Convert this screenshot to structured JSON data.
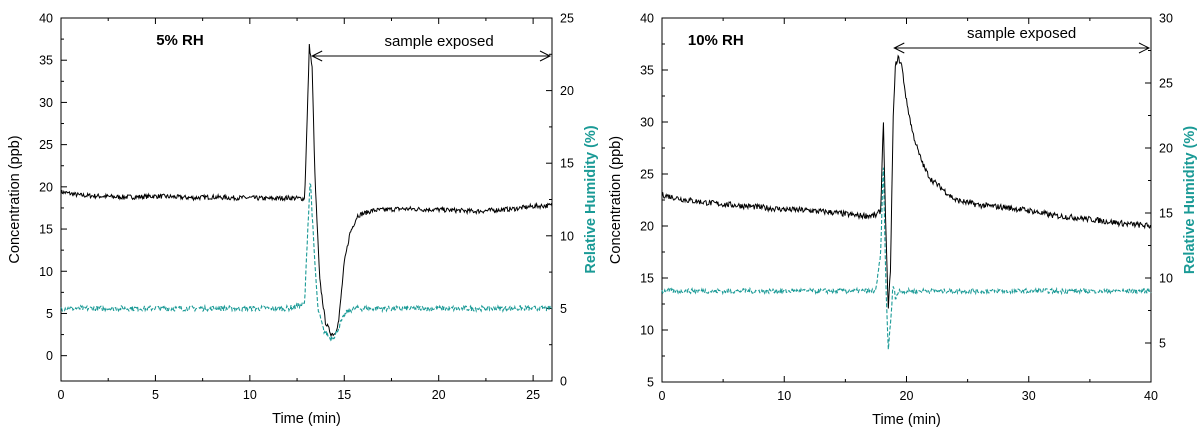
{
  "colors": {
    "concentration": "#000000",
    "humidity": "#1a9a96",
    "axis": "#000000",
    "background": "#ffffff"
  },
  "chart_data": [
    {
      "type": "line",
      "panel_label": "5% RH",
      "annotation": "sample exposed",
      "annotation_range_x": [
        13.3,
        26
      ],
      "xlabel": "Time (min)",
      "ylabel_left": "Concentration (ppb)",
      "ylabel_right": "Relative Humidity (%)",
      "xlim": [
        0,
        26
      ],
      "ylim_left": [
        -3,
        40
      ],
      "ylim_right": [
        0,
        25
      ],
      "xticks": [
        0,
        5,
        10,
        15,
        20,
        25
      ],
      "yticks_left": [
        0,
        5,
        10,
        15,
        20,
        25,
        30,
        35,
        40
      ],
      "yticks_right": [
        0,
        5,
        10,
        15,
        20,
        25
      ],
      "grid": false,
      "series": [
        {
          "axis": "left",
          "style": "solid",
          "x": [
            0,
            1,
            2,
            3,
            4,
            5,
            6,
            7,
            8,
            9,
            10,
            11,
            12,
            12.9,
            13.05,
            13.15,
            13.3,
            13.45,
            13.7,
            14.0,
            14.3,
            14.5,
            14.7,
            15.0,
            15.3,
            15.7,
            16.5,
            18,
            20,
            22,
            24,
            25,
            26
          ],
          "y": [
            19.4,
            19.0,
            18.9,
            18.8,
            18.8,
            18.9,
            18.8,
            18.7,
            18.8,
            18.7,
            18.7,
            18.6,
            18.7,
            18.6,
            29.0,
            36.8,
            34.0,
            21.0,
            9.0,
            4.0,
            2.6,
            2.6,
            4.0,
            11.0,
            14.5,
            16.6,
            17.2,
            17.4,
            17.3,
            17.1,
            17.4,
            17.7,
            17.8
          ]
        },
        {
          "axis": "right",
          "style": "dashed",
          "x": [
            0,
            2,
            4,
            6,
            8,
            10,
            12,
            12.9,
            13.05,
            13.2,
            13.4,
            13.6,
            13.9,
            14.2,
            14.5,
            14.8,
            15.1,
            15.5,
            17,
            19,
            21,
            23,
            25,
            26
          ],
          "y": [
            5.0,
            5.0,
            5.0,
            5.0,
            5.0,
            5.0,
            5.0,
            5.3,
            10.0,
            14.0,
            9.0,
            5.0,
            3.5,
            3.0,
            3.1,
            4.0,
            4.7,
            5.0,
            5.0,
            5.0,
            5.0,
            5.0,
            5.0,
            5.0
          ]
        }
      ]
    },
    {
      "type": "line",
      "panel_label": "10% RH",
      "annotation": "sample exposed",
      "annotation_range_x": [
        19.0,
        40
      ],
      "xlabel": "Time (min)",
      "ylabel_left": "Concentration (ppb)",
      "ylabel_right": "Relative Humidity (%)",
      "xlim": [
        0,
        40
      ],
      "ylim_left": [
        5,
        40
      ],
      "ylim_right": [
        2,
        30
      ],
      "xticks": [
        0,
        10,
        20,
        30,
        40
      ],
      "yticks_left": [
        5,
        10,
        15,
        20,
        25,
        30,
        35,
        40
      ],
      "yticks_right": [
        5,
        10,
        15,
        20,
        25,
        30
      ],
      "grid": false,
      "series": [
        {
          "axis": "left",
          "style": "solid",
          "x": [
            0,
            2,
            4,
            6,
            8,
            10,
            12,
            14,
            16,
            17.5,
            17.9,
            18.1,
            18.3,
            18.5,
            18.7,
            18.9,
            19.1,
            19.3,
            19.6,
            20.0,
            20.5,
            21.0,
            21.5,
            22.0,
            23.0,
            24.0,
            26.0,
            28.0,
            30.0,
            32.0,
            34.0,
            36.0,
            38.0,
            40.0
          ],
          "y": [
            23.0,
            22.5,
            22.2,
            22.0,
            21.8,
            21.6,
            21.5,
            21.3,
            21.0,
            21.0,
            21.5,
            30.5,
            20.0,
            12.0,
            16.0,
            30.0,
            35.5,
            36.2,
            35.5,
            32.0,
            29.0,
            27.0,
            25.5,
            24.5,
            23.5,
            22.5,
            22.0,
            21.8,
            21.5,
            21.0,
            20.8,
            20.5,
            20.2,
            20.0
          ]
        },
        {
          "axis": "right",
          "style": "dashed",
          "x": [
            0,
            3,
            6,
            9,
            12,
            15,
            17.5,
            17.9,
            18.1,
            18.3,
            18.5,
            18.7,
            18.9,
            19.1,
            19.4,
            20,
            23,
            26,
            29,
            32,
            35,
            38,
            40
          ],
          "y": [
            9.0,
            9.0,
            9.0,
            9.0,
            9.0,
            9.0,
            9.0,
            12.0,
            19.0,
            10.0,
            4.5,
            6.5,
            9.5,
            8.5,
            9.0,
            9.0,
            9.0,
            9.0,
            9.0,
            9.0,
            9.0,
            9.0,
            9.0
          ]
        }
      ]
    }
  ]
}
